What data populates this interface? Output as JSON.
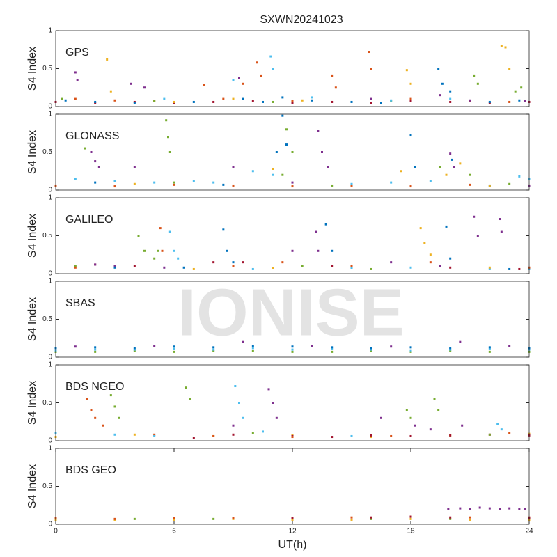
{
  "title": "SXWN20241023",
  "xlabel": "UT(h)",
  "watermark": "IONISE",
  "chart_data": [
    {
      "type": "scatter",
      "title": "GPS",
      "ylabel": "S4 Index",
      "xlim": [
        0,
        24
      ],
      "ylim": [
        0,
        1
      ],
      "yticks": [
        0,
        0.5,
        1
      ],
      "series": [
        {
          "color": "#A2142F",
          "x": [
            0,
            2,
            4,
            6,
            8,
            10,
            12,
            14,
            16,
            18,
            20,
            22,
            24
          ],
          "values": [
            0.06,
            0.05,
            0.06,
            0.05,
            0.06,
            0.07,
            0.05,
            0.06,
            0.05,
            0.07,
            0.06,
            0.05,
            0.06
          ]
        },
        {
          "color": "#0072BD",
          "x": [
            0.5,
            2,
            4,
            7,
            9.5,
            10.5,
            11.5,
            13,
            15,
            16.5,
            19.4,
            19.6,
            20,
            22,
            23.5
          ],
          "values": [
            0.08,
            0.06,
            0.05,
            0.06,
            0.1,
            0.06,
            0.12,
            0.08,
            0.06,
            0.05,
            0.5,
            0.3,
            0.2,
            0.06,
            0.08
          ]
        },
        {
          "color": "#D95319",
          "x": [
            1,
            3,
            5,
            7.5,
            8.5,
            9.5,
            10.2,
            10.4,
            12,
            14,
            14.2,
            15.9,
            16,
            18,
            21,
            23
          ],
          "values": [
            0.1,
            0.08,
            0.07,
            0.28,
            0.1,
            0.3,
            0.58,
            0.4,
            0.07,
            0.4,
            0.25,
            0.72,
            0.5,
            0.1,
            0.07,
            0.06
          ]
        },
        {
          "color": "#EDB120",
          "x": [
            2.6,
            2.8,
            6,
            9,
            12.5,
            17.8,
            18,
            22.6,
            22.8,
            23
          ],
          "values": [
            0.62,
            0.2,
            0.06,
            0.1,
            0.08,
            0.48,
            0.3,
            0.8,
            0.78,
            0.5
          ]
        },
        {
          "color": "#7E2F8E",
          "x": [
            1,
            1.1,
            3.8,
            4.5,
            9.3,
            16,
            19.5,
            21,
            23.8
          ],
          "values": [
            0.45,
            0.35,
            0.3,
            0.25,
            0.38,
            0.1,
            0.15,
            0.08,
            0.07
          ]
        },
        {
          "color": "#77AC30",
          "x": [
            0.3,
            5,
            11,
            17,
            21.2,
            21.4,
            23.3,
            23.6
          ],
          "values": [
            0.1,
            0.07,
            0.06,
            0.07,
            0.4,
            0.3,
            0.2,
            0.25
          ]
        },
        {
          "color": "#4DBEEE",
          "x": [
            5.5,
            9,
            10.9,
            11,
            13,
            17,
            20
          ],
          "values": [
            0.1,
            0.35,
            0.66,
            0.5,
            0.12,
            0.08,
            0.1
          ]
        }
      ]
    },
    {
      "type": "scatter",
      "title": "GLONASS",
      "ylabel": "S4 Index",
      "xlim": [
        0,
        24
      ],
      "ylim": [
        0,
        1
      ],
      "yticks": [
        0,
        0.5,
        1
      ],
      "series": [
        {
          "color": "#D95319",
          "x": [
            0,
            3,
            6,
            9,
            12,
            15,
            18,
            21,
            24
          ],
          "values": [
            0.06,
            0.05,
            0.07,
            0.06,
            0.05,
            0.06,
            0.05,
            0.07,
            0.06
          ]
        },
        {
          "color": "#4DBEEE",
          "x": [
            1,
            3,
            5,
            7,
            8,
            10,
            11,
            15,
            17,
            19,
            23.5,
            24
          ],
          "values": [
            0.15,
            0.12,
            0.1,
            0.12,
            0.1,
            0.25,
            0.2,
            0.08,
            0.1,
            0.12,
            0.18,
            0.15
          ]
        },
        {
          "color": "#77AC30",
          "x": [
            1.5,
            5.6,
            5.7,
            5.8,
            6,
            11.5,
            11.7,
            12,
            14,
            19.5,
            21,
            23
          ],
          "values": [
            0.55,
            0.92,
            0.7,
            0.5,
            0.1,
            0.2,
            0.8,
            0.5,
            0.06,
            0.3,
            0.2,
            0.08
          ]
        },
        {
          "color": "#7E2F8E",
          "x": [
            1.8,
            2,
            2.2,
            4,
            9,
            12,
            13.3,
            13.5,
            13.8,
            20,
            20.2,
            24
          ],
          "values": [
            0.5,
            0.38,
            0.3,
            0.3,
            0.3,
            0.1,
            0.78,
            0.5,
            0.3,
            0.48,
            0.3,
            0.06
          ]
        },
        {
          "color": "#0072BD",
          "x": [
            2,
            8.5,
            11.2,
            11.5,
            11.7,
            18,
            18.2,
            20.1,
            22
          ],
          "values": [
            0.1,
            0.07,
            0.5,
            0.98,
            0.6,
            0.72,
            0.3,
            0.4,
            0.06
          ]
        },
        {
          "color": "#EDB120",
          "x": [
            4,
            11,
            17.5,
            19.8,
            20.5,
            22
          ],
          "values": [
            0.08,
            0.28,
            0.25,
            0.2,
            0.35,
            0.06
          ]
        }
      ]
    },
    {
      "type": "scatter",
      "title": "GALILEO",
      "ylabel": "S4 Index",
      "xlim": [
        0,
        24
      ],
      "ylim": [
        0,
        1
      ],
      "yticks": [
        0,
        0.5,
        1
      ],
      "series": [
        {
          "color": "#A2142F",
          "x": [
            2,
            4,
            8,
            9.5,
            14,
            20,
            23.5
          ],
          "values": [
            0.12,
            0.1,
            0.15,
            0.15,
            0.1,
            0.08,
            0.06
          ]
        },
        {
          "color": "#7E2F8E",
          "x": [
            2,
            3,
            5.5,
            12,
            13.2,
            13.3,
            17,
            19.5,
            21.2,
            21.4,
            22.5,
            22.6
          ],
          "values": [
            0.12,
            0.1,
            0.08,
            0.3,
            0.55,
            0.3,
            0.15,
            0.1,
            0.75,
            0.5,
            0.72,
            0.55
          ]
        },
        {
          "color": "#77AC30",
          "x": [
            1,
            4.2,
            4.5,
            5,
            5.2,
            12.5,
            16
          ],
          "values": [
            0.1,
            0.5,
            0.3,
            0.2,
            0.3,
            0.1,
            0.06
          ]
        },
        {
          "color": "#0072BD",
          "x": [
            3,
            6.5,
            8.5,
            8.7,
            9,
            13.7,
            14,
            19.8,
            20,
            23
          ],
          "values": [
            0.08,
            0.08,
            0.58,
            0.3,
            0.15,
            0.65,
            0.3,
            0.62,
            0.2,
            0.06
          ]
        },
        {
          "color": "#4DBEEE",
          "x": [
            5.8,
            6,
            6.2,
            10,
            15,
            18,
            22,
            24
          ],
          "values": [
            0.55,
            0.3,
            0.2,
            0.06,
            0.07,
            0.08,
            0.06,
            0.06
          ]
        },
        {
          "color": "#EDB120",
          "x": [
            7,
            11,
            18.5,
            18.7,
            19,
            22
          ],
          "values": [
            0.06,
            0.07,
            0.6,
            0.4,
            0.25,
            0.08
          ]
        },
        {
          "color": "#D95319",
          "x": [
            1,
            5.3,
            5.4,
            9,
            11.5,
            15,
            19,
            24
          ],
          "values": [
            0.08,
            0.6,
            0.3,
            0.1,
            0.15,
            0.1,
            0.15,
            0.08
          ]
        }
      ]
    },
    {
      "type": "scatter",
      "title": "SBAS",
      "ylabel": "S4 Index",
      "xlim": [
        0,
        24
      ],
      "ylim": [
        0,
        1
      ],
      "yticks": [
        0,
        0.5,
        1
      ],
      "series": [
        {
          "color": "#77AC30",
          "x": [
            0,
            2,
            4,
            6,
            8,
            10,
            12,
            14,
            16,
            18,
            20,
            22,
            24
          ],
          "values": [
            0.07,
            0.07,
            0.08,
            0.07,
            0.08,
            0.08,
            0.07,
            0.07,
            0.08,
            0.07,
            0.08,
            0.07,
            0.07
          ]
        },
        {
          "color": "#4DBEEE",
          "x": [
            0,
            2,
            4,
            6,
            8,
            10,
            12,
            14,
            16,
            18,
            20,
            22,
            24
          ],
          "values": [
            0.09,
            0.1,
            0.1,
            0.11,
            0.1,
            0.12,
            0.1,
            0.11,
            0.1,
            0.09,
            0.1,
            0.11,
            0.1
          ]
        },
        {
          "color": "#0072BD",
          "x": [
            0,
            2,
            4,
            6,
            8,
            10,
            12,
            14,
            16,
            18,
            20,
            22,
            24
          ],
          "values": [
            0.12,
            0.13,
            0.12,
            0.14,
            0.13,
            0.15,
            0.14,
            0.13,
            0.12,
            0.13,
            0.12,
            0.13,
            0.12
          ]
        },
        {
          "color": "#7E2F8E",
          "x": [
            1,
            5,
            9.5,
            13,
            17,
            20.5,
            23
          ],
          "values": [
            0.14,
            0.15,
            0.2,
            0.15,
            0.14,
            0.2,
            0.15
          ]
        }
      ]
    },
    {
      "type": "scatter",
      "title": "BDS NGEO",
      "ylabel": "S4 Index",
      "xlim": [
        0,
        24
      ],
      "ylim": [
        0,
        1
      ],
      "yticks": [
        0,
        0.5,
        1
      ],
      "series": [
        {
          "color": "#EDB120",
          "x": [
            0,
            4,
            8,
            12,
            16,
            20,
            24
          ],
          "values": [
            0.05,
            0.08,
            0.06,
            0.07,
            0.05,
            0.07,
            0.09
          ]
        },
        {
          "color": "#A2142F",
          "x": [
            7,
            9,
            12,
            14,
            16,
            18,
            20,
            22,
            24
          ],
          "values": [
            0.04,
            0.08,
            0.06,
            0.05,
            0.07,
            0.06,
            0.07,
            0.08,
            0.07
          ]
        },
        {
          "color": "#D95319",
          "x": [
            1.6,
            1.8,
            2,
            2.4,
            5,
            8,
            12,
            17,
            23
          ],
          "values": [
            0.55,
            0.4,
            0.3,
            0.2,
            0.08,
            0.06,
            0.05,
            0.06,
            0.1
          ]
        },
        {
          "color": "#77AC30",
          "x": [
            2.8,
            3,
            3.2,
            6.6,
            6.8,
            10,
            17.8,
            18,
            19.2,
            19.4,
            22
          ],
          "values": [
            0.6,
            0.45,
            0.3,
            0.7,
            0.55,
            0.1,
            0.4,
            0.3,
            0.55,
            0.4,
            0.08
          ]
        },
        {
          "color": "#4DBEEE",
          "x": [
            0,
            3,
            5,
            9.1,
            9.3,
            9.5,
            10.5,
            15,
            22.4,
            22.6
          ],
          "values": [
            0.1,
            0.08,
            0.06,
            0.72,
            0.5,
            0.3,
            0.12,
            0.06,
            0.22,
            0.15
          ]
        },
        {
          "color": "#7E2F8E",
          "x": [
            9,
            10.8,
            11,
            11.2,
            16.5,
            18.2,
            19,
            20.6
          ],
          "values": [
            0.2,
            0.68,
            0.5,
            0.3,
            0.3,
            0.2,
            0.15,
            0.2
          ]
        }
      ]
    },
    {
      "type": "scatter",
      "title": "BDS GEO",
      "ylabel": "S4 Index",
      "xlim": [
        0,
        24
      ],
      "ylim": [
        0,
        1
      ],
      "yticks": [
        0,
        0.5,
        1
      ],
      "xticks": [
        0,
        6,
        12,
        18,
        24
      ],
      "series": [
        {
          "color": "#77AC30",
          "x": [
            0,
            4,
            8,
            12,
            16,
            20,
            24
          ],
          "values": [
            0.07,
            0.07,
            0.07,
            0.07,
            0.07,
            0.07,
            0.07
          ]
        },
        {
          "color": "#EDB120",
          "x": [
            0,
            3,
            6,
            9,
            12,
            15,
            18,
            21,
            24
          ],
          "values": [
            0.06,
            0.06,
            0.06,
            0.07,
            0.06,
            0.06,
            0.07,
            0.06,
            0.05
          ]
        },
        {
          "color": "#D95319",
          "x": [
            0,
            3,
            6,
            9,
            12,
            15,
            18,
            21,
            24
          ],
          "values": [
            0.08,
            0.07,
            0.08,
            0.08,
            0.08,
            0.09,
            0.1,
            0.09,
            0.09
          ]
        },
        {
          "color": "#A2142F",
          "x": [
            12,
            16,
            18,
            20,
            24
          ],
          "values": [
            0.08,
            0.09,
            0.1,
            0.09,
            0.08
          ]
        },
        {
          "color": "#7E2F8E",
          "x": [
            19.9,
            20.5,
            21,
            21.5,
            22,
            22.5,
            23,
            23.5,
            23.8
          ],
          "values": [
            0.2,
            0.21,
            0.2,
            0.22,
            0.21,
            0.2,
            0.21,
            0.2,
            0.2
          ]
        }
      ]
    }
  ]
}
